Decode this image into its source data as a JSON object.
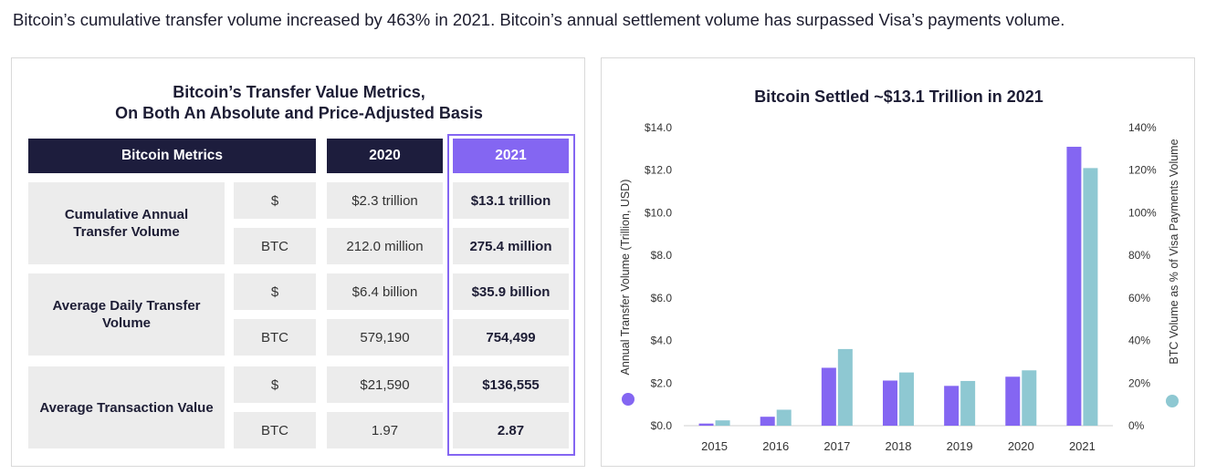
{
  "headline": "Bitcoin’s cumulative transfer volume increased by 463% in 2021. Bitcoin’s annual settlement volume has surpassed Visa’s payments volume.",
  "table": {
    "title_line1": "Bitcoin’s Transfer Value Metrics,",
    "title_line2": "On Both An Absolute and Price-Adjusted Basis",
    "headers": [
      "Bitcoin Metrics",
      "2020",
      "2021"
    ],
    "rows": [
      {
        "metric": "Cumulative Annual Transfer Volume",
        "units": [
          "$",
          "BTC"
        ],
        "v2020": [
          "$2.3 trillion",
          "212.0 million"
        ],
        "v2021": [
          "$13.1 trillion",
          "275.4 million"
        ]
      },
      {
        "metric": "Average Daily Transfer Volume",
        "units": [
          "$",
          "BTC"
        ],
        "v2020": [
          "$6.4 billion",
          "579,190"
        ],
        "v2021": [
          "$35.9 billion",
          "754,499"
        ]
      },
      {
        "metric": "Average Transaction Value",
        "units": [
          "$",
          "BTC"
        ],
        "v2020": [
          "$21,590",
          "1.97"
        ],
        "v2021": [
          "$136,555",
          "2.87"
        ]
      }
    ]
  },
  "colors": {
    "navy": "#1d1d3d",
    "purple": "#8466f2",
    "teal": "#8ec8d2",
    "grey": "#ececec"
  },
  "chart_data": {
    "type": "bar",
    "title": "Bitcoin Settled ~$13.1 Trillion in 2021",
    "categories": [
      "2015",
      "2016",
      "2017",
      "2018",
      "2019",
      "2020",
      "2021"
    ],
    "series": [
      {
        "name": "Annual Transfer Volume (Trillion, USD)",
        "axis": "left",
        "color": "#8466f2",
        "values": [
          0.1,
          0.42,
          2.72,
          2.12,
          1.87,
          2.3,
          13.1
        ]
      },
      {
        "name": "BTC Volume as % of Visa Payments Volume",
        "axis": "right",
        "color": "#8ec8d2",
        "values": [
          2.5,
          7.5,
          36,
          25,
          21,
          26,
          121
        ]
      }
    ],
    "ylabel": "Annual Transfer Volume (Trillion, USD)",
    "y2label": "BTC Volume as % of Visa Payments Volume",
    "ylim": [
      0,
      14
    ],
    "y2lim": [
      0,
      140
    ],
    "yticks": [
      "$0.0",
      "$2.0",
      "$4.0",
      "$6.0",
      "$8.0",
      "$10.0",
      "$12.0",
      "$14.0"
    ],
    "y2ticks": [
      "0%",
      "20%",
      "40%",
      "60%",
      "80%",
      "100%",
      "120%",
      "140%"
    ],
    "grid": false
  }
}
